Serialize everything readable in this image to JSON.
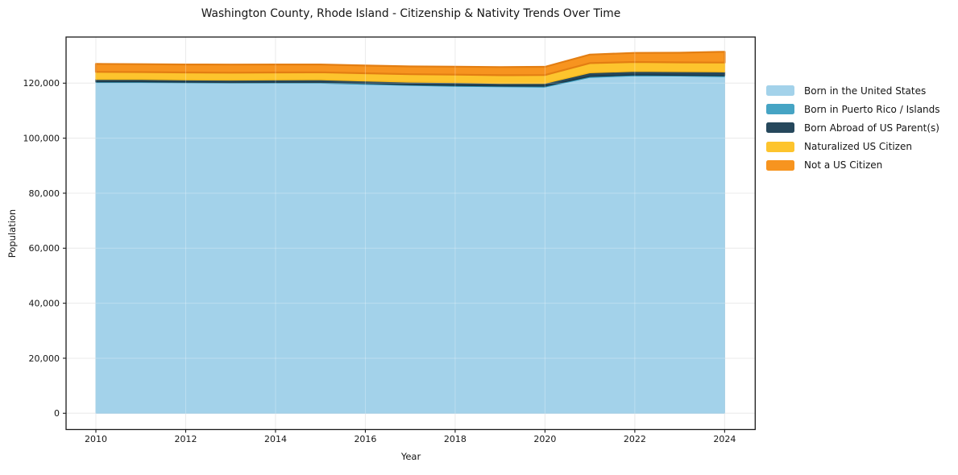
{
  "figure": {
    "title": "Washington County, Rhode Island - Citizenship & Nativity Trends Over Time",
    "xlabel": "Year",
    "ylabel": "Population"
  },
  "chart_data": {
    "type": "area",
    "stacked": true,
    "title": "Washington County, Rhode Island - Citizenship & Nativity Trends Over Time",
    "xlabel": "Year",
    "ylabel": "Population",
    "grid": true,
    "legend_position": "right",
    "xlim": [
      2009.3,
      2024.7
    ],
    "ylim": [
      -5900,
      136800
    ],
    "x": [
      2010,
      2011,
      2012,
      2013,
      2014,
      2015,
      2016,
      2017,
      2018,
      2019,
      2020,
      2021,
      2022,
      2023,
      2024
    ],
    "series": [
      {
        "key": "born-us",
        "name": "Born in the United States",
        "color": "#a3d2ea",
        "edge": "#85bedd",
        "values": [
          120200,
          120200,
          120100,
          120000,
          120000,
          120000,
          119600,
          119200,
          118900,
          118700,
          118600,
          122100,
          122700,
          122600,
          122400
        ]
      },
      {
        "key": "born-pr",
        "name": "Born in Puerto Rico / Islands",
        "color": "#46a4c4",
        "edge": "#2d93b4",
        "values": [
          300,
          300,
          250,
          250,
          300,
          300,
          300,
          250,
          300,
          300,
          350,
          400,
          350,
          300,
          350
        ]
      },
      {
        "key": "born-abroad",
        "name": "Born Abroad of US Parent(s)",
        "color": "#26485c",
        "edge": "#1b3646",
        "values": [
          900,
          900,
          850,
          900,
          900,
          950,
          900,
          950,
          1000,
          950,
          1000,
          1300,
          1250,
          1300,
          1350
        ]
      },
      {
        "key": "naturalized",
        "name": "Naturalized US Citizen",
        "color": "#fdc42d",
        "edge": "#f3b81f",
        "values": [
          2700,
          2650,
          2700,
          2650,
          2700,
          2700,
          2800,
          2850,
          2900,
          2950,
          3000,
          3500,
          3400,
          3350,
          3400
        ]
      },
      {
        "key": "not-citizen",
        "name": "Not a US Citizen",
        "color": "#f7941f",
        "edge": "#e37e12",
        "values": [
          2900,
          2850,
          2900,
          2950,
          2900,
          2850,
          2800,
          2850,
          2900,
          2950,
          3000,
          3100,
          3300,
          3500,
          3900
        ]
      }
    ],
    "x_ticks": [
      {
        "v": 2010,
        "label": "2010"
      },
      {
        "v": 2012,
        "label": "2012"
      },
      {
        "v": 2014,
        "label": "2014"
      },
      {
        "v": 2016,
        "label": "2016"
      },
      {
        "v": 2018,
        "label": "2018"
      },
      {
        "v": 2020,
        "label": "2020"
      },
      {
        "v": 2022,
        "label": "2022"
      },
      {
        "v": 2024,
        "label": "2024"
      }
    ],
    "y_ticks": [
      {
        "v": 0,
        "label": "0"
      },
      {
        "v": 20000,
        "label": "20,000"
      },
      {
        "v": 40000,
        "label": "40,000"
      },
      {
        "v": 60000,
        "label": "60,000"
      },
      {
        "v": 80000,
        "label": "80,000"
      },
      {
        "v": 100000,
        "label": "100,000"
      },
      {
        "v": 120000,
        "label": "120,000"
      }
    ],
    "colors": {
      "grid": "#e3e3e3",
      "grid_overlay": "rgba(255,255,255,0.28)",
      "spine": "#1a1a1a",
      "text": "#151515"
    }
  }
}
